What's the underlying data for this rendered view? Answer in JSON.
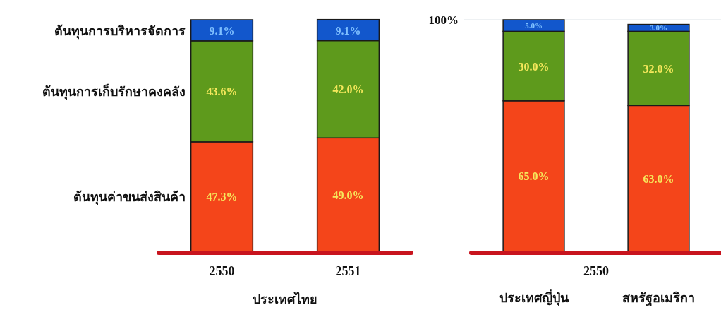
{
  "chart_data": [
    {
      "type": "bar",
      "stacked": true,
      "xlabel": "ประเทศไทย",
      "categories": [
        "2550",
        "2551"
      ],
      "ylim": [
        0,
        100
      ],
      "tick_labels": "x",
      "series": [
        {
          "name": "ต้นทุนค่าขนส่งสินค้า",
          "color": "#f4451a",
          "values": [
            47.3,
            49.0
          ],
          "value_labels": [
            "47.3%",
            "49.0%"
          ]
        },
        {
          "name": "ต้นทุนการเก็บรักษาคงคลัง",
          "color": "#5e9a1c",
          "values": [
            43.6,
            42.0
          ],
          "value_labels": [
            "43.6%",
            "42.0%"
          ]
        },
        {
          "name": "ต้นทุนการบริหารจัดการ",
          "color": "#1257cc",
          "values": [
            9.1,
            9.1
          ],
          "value_labels": [
            "9.1%",
            "9.1%"
          ]
        }
      ]
    },
    {
      "type": "bar",
      "stacked": true,
      "xlabel": "2550",
      "categories": [
        "ประเทศญี่ปุ่น",
        "สหรัฐอเมริกา"
      ],
      "ylim": [
        0,
        100
      ],
      "yticks": [
        {
          "value": 100,
          "label": "100%"
        }
      ],
      "grid": "y",
      "series": [
        {
          "color": "#f4451a",
          "values": [
            65.0,
            63.0
          ],
          "value_labels": [
            "65.0%",
            "63.0%"
          ]
        },
        {
          "color": "#5e9a1c",
          "values": [
            30.0,
            32.0
          ],
          "value_labels": [
            "30.0%",
            "32.0%"
          ]
        },
        {
          "color": "#1257cc",
          "values": [
            5.0,
            3.0
          ],
          "value_labels": [
            "5.0%",
            "3.0%"
          ]
        }
      ]
    }
  ]
}
